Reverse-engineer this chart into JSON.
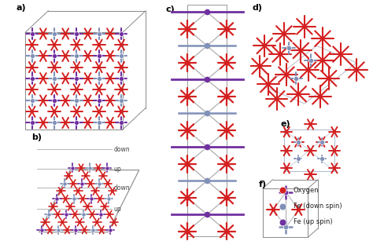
{
  "background": "#ffffff",
  "colors": {
    "oxygen": "#d42020",
    "fe_down": "#8090b8",
    "fe_up": "#7030a0",
    "bond": "#b0b0b0",
    "box": "#888888"
  },
  "legend": {
    "oxygen": "Oxygen",
    "fe_down": "Fe (down spin)",
    "fe_up": "Fe (up spin)"
  },
  "labels": {
    "a": "a)",
    "b": "b)",
    "c": "c)",
    "d": "d)",
    "e": "e)",
    "f": "f)"
  },
  "layer_labels": [
    "down",
    "up",
    "down",
    "up"
  ]
}
